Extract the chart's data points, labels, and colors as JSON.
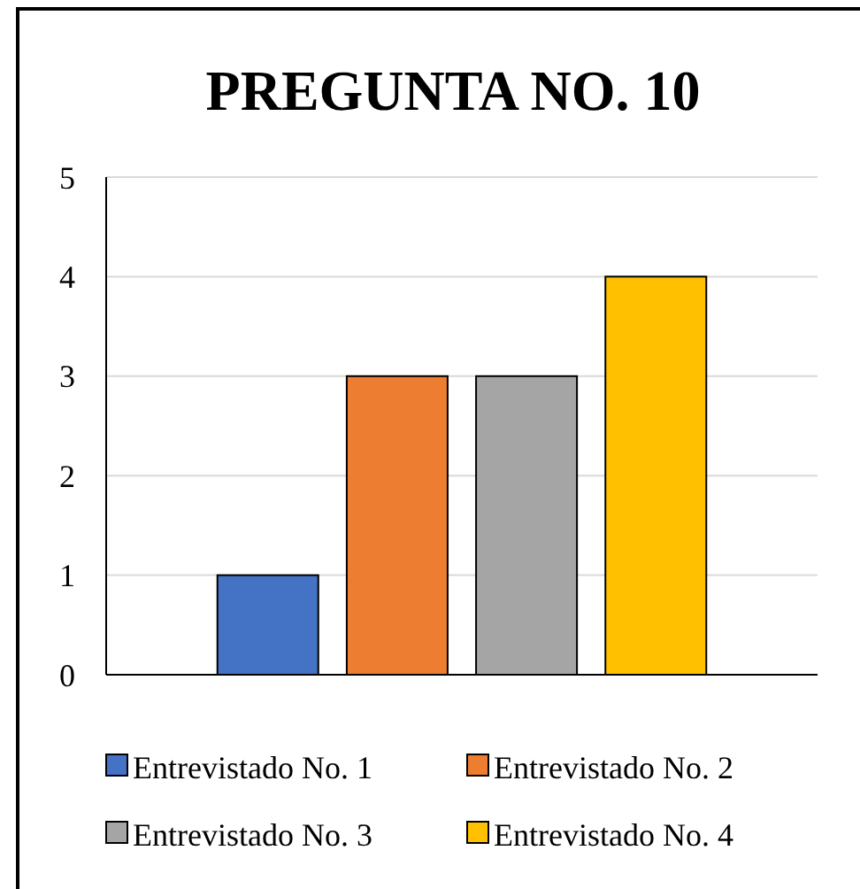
{
  "chart_data": {
    "type": "bar",
    "title": "PREGUNTA NO. 10",
    "categories": [
      null
    ],
    "series": [
      {
        "name": "Entrevistado No. 1",
        "color": "#4472c4",
        "values": [
          1
        ]
      },
      {
        "name": "Entrevistado No. 2",
        "color": "#ed7d31",
        "values": [
          3
        ]
      },
      {
        "name": "Entrevistado No. 3",
        "color": "#a5a5a5",
        "values": [
          3
        ]
      },
      {
        "name": "Entrevistado No. 4",
        "color": "#ffc000",
        "values": [
          4
        ]
      }
    ],
    "ylim": [
      0,
      5
    ],
    "yticks": [
      0,
      1,
      2,
      3,
      4,
      5
    ],
    "grid": "y",
    "legend": "bottom"
  }
}
